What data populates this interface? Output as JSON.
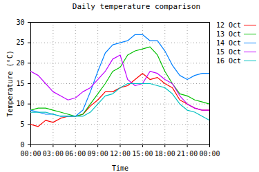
{
  "chart_data": {
    "type": "line",
    "title": "Daily temperature comparison",
    "x_label": "Time",
    "y_label": "Temperature (°C)",
    "x": [
      0,
      1,
      2,
      3,
      4,
      5,
      6,
      7,
      8,
      9,
      10,
      11,
      12,
      13,
      14,
      15,
      16,
      17,
      18,
      19,
      20,
      21,
      22,
      23,
      24
    ],
    "series": [
      {
        "name": "12 Oct",
        "color": "#ff0000",
        "values": [
          5,
          4.5,
          6,
          5.5,
          6.5,
          7,
          7,
          7.5,
          9.5,
          11,
          13,
          13,
          14,
          14.5,
          16,
          17.5,
          16,
          16.5,
          15,
          14,
          11,
          10,
          9,
          8.5,
          8.5
        ]
      },
      {
        "name": "13 Oct",
        "color": "#00c000",
        "values": [
          8.5,
          9,
          9,
          8.5,
          8,
          7.5,
          7,
          7.5,
          10,
          12.5,
          15,
          18,
          19,
          22,
          23,
          23.5,
          24,
          22,
          18,
          15,
          12.5,
          12,
          11,
          10.5,
          10
        ]
      },
      {
        "name": "14 Oct",
        "color": "#0080ff",
        "values": [
          8.5,
          8,
          7.5,
          7.5,
          7,
          7,
          7,
          8.5,
          13,
          18,
          22.5,
          24.5,
          25,
          25.5,
          27,
          27,
          25.5,
          25.5,
          23,
          19.5,
          17,
          16,
          17,
          17.5,
          17.5
        ]
      },
      {
        "name": "15 Oct",
        "color": "#c000ff",
        "values": [
          18,
          17,
          15,
          13,
          12,
          11,
          11.5,
          13,
          14,
          16,
          18,
          21,
          22,
          16,
          14.5,
          15,
          18,
          17.5,
          16,
          15,
          12,
          10,
          9,
          8.5,
          8.5
        ]
      },
      {
        "name": "16 Oct",
        "color": "#00c0c0",
        "values": [
          8,
          8,
          8,
          7.5,
          7,
          7,
          7,
          7,
          8,
          10,
          12,
          12.5,
          14,
          15,
          15,
          15,
          15,
          14.5,
          14,
          12.5,
          10,
          8.5,
          8,
          7,
          6
        ]
      }
    ],
    "xlim": [
      0,
      24
    ],
    "xticks": [
      {
        "value": 0,
        "label": "00:00"
      },
      {
        "value": 3,
        "label": "03:00"
      },
      {
        "value": 6,
        "label": "06:00"
      },
      {
        "value": 9,
        "label": "09:00"
      },
      {
        "value": 12,
        "label": "12:00"
      },
      {
        "value": 15,
        "label": "15:00"
      },
      {
        "value": 18,
        "label": "18:00"
      },
      {
        "value": 21,
        "label": "21:00"
      },
      {
        "value": 24,
        "label": "00:00"
      }
    ],
    "ylim": [
      0,
      30
    ],
    "yticks": [
      0,
      5,
      10,
      15,
      20,
      25,
      30
    ],
    "grid": true,
    "legend": "top-right"
  }
}
